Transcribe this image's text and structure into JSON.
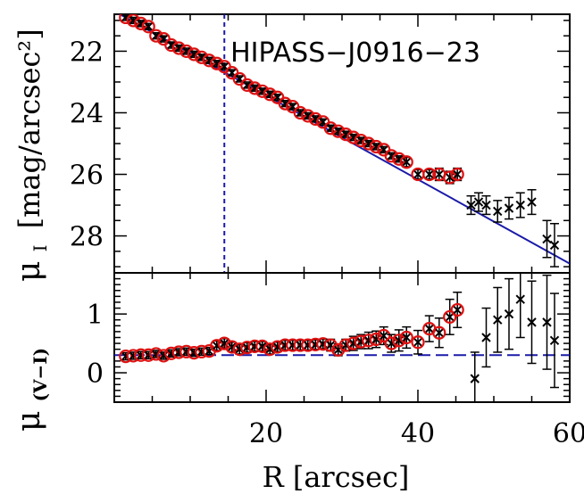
{
  "figure": {
    "title": "HIPASS−J0916−23",
    "xlabel": "R [arcsec]",
    "ylabel_top": "μ",
    "ylabel_top_sub": "I",
    "ylabel_top_units": "[mag/arcsec²]",
    "ylabel_bottom": "μ",
    "ylabel_bottom_sub": "(V−I)"
  },
  "colors": {
    "fit_line": "#1a1aa8",
    "circle_marker": "#dd1111",
    "cross_marker": "#000000",
    "axes": "#000000"
  },
  "chart_data": [
    {
      "type": "scatter",
      "panel": "top",
      "xlim": [
        0,
        60
      ],
      "ylim": [
        29.2,
        20.8
      ],
      "y_inverted": true,
      "xticks": [
        20,
        40,
        60
      ],
      "yticks": [
        22,
        24,
        26,
        28
      ],
      "vline_x": 14.5,
      "fit_line": {
        "x": [
          0,
          60
        ],
        "y": [
          20.7,
          28.9
        ]
      },
      "series": [
        {
          "marker": "cross-circled",
          "points": [
            [
              1.5,
              20.9,
              0.1
            ],
            [
              2.5,
              21.0,
              0.1
            ],
            [
              3.5,
              21.1,
              0.1
            ],
            [
              4.5,
              21.2,
              0.1
            ],
            [
              5.5,
              21.5,
              0.1
            ],
            [
              6.5,
              21.6,
              0.1
            ],
            [
              7.5,
              21.8,
              0.1
            ],
            [
              8.5,
              21.9,
              0.1
            ],
            [
              9.5,
              22.0,
              0.1
            ],
            [
              10.5,
              22.1,
              0.1
            ],
            [
              11.5,
              22.2,
              0.1
            ],
            [
              12.5,
              22.3,
              0.1
            ],
            [
              13.5,
              22.4,
              0.1
            ],
            [
              14.5,
              22.5,
              0.1
            ],
            [
              15.5,
              22.7,
              0.1
            ],
            [
              16.5,
              22.9,
              0.1
            ],
            [
              17.5,
              23.1,
              0.1
            ],
            [
              18.5,
              23.2,
              0.1
            ],
            [
              19.5,
              23.3,
              0.1
            ],
            [
              20.5,
              23.4,
              0.1
            ],
            [
              21.5,
              23.5,
              0.1
            ],
            [
              22.5,
              23.7,
              0.1
            ],
            [
              23.5,
              23.8,
              0.1
            ],
            [
              24.5,
              24.0,
              0.1
            ],
            [
              25.5,
              24.1,
              0.1
            ],
            [
              26.5,
              24.2,
              0.1
            ],
            [
              27.5,
              24.3,
              0.1
            ],
            [
              28.5,
              24.5,
              0.1
            ],
            [
              29.5,
              24.6,
              0.1
            ],
            [
              30.5,
              24.7,
              0.1
            ],
            [
              31.5,
              24.8,
              0.1
            ],
            [
              32.5,
              24.9,
              0.1
            ],
            [
              33.5,
              25.0,
              0.1
            ],
            [
              34.5,
              25.1,
              0.1
            ],
            [
              35.5,
              25.2,
              0.1
            ],
            [
              36.5,
              25.4,
              0.1
            ],
            [
              37.5,
              25.5,
              0.1
            ],
            [
              38.5,
              25.6,
              0.15
            ],
            [
              40.0,
              26.0,
              0.15
            ],
            [
              41.5,
              26.0,
              0.15
            ],
            [
              42.8,
              26.0,
              0.2
            ],
            [
              44.2,
              26.1,
              0.2
            ],
            [
              45.2,
              26.0,
              0.2
            ]
          ]
        },
        {
          "marker": "cross",
          "points": [
            [
              47.0,
              27.0,
              0.3
            ],
            [
              48.0,
              26.9,
              0.3
            ],
            [
              49.0,
              27.0,
              0.3
            ],
            [
              50.5,
              27.2,
              0.35
            ],
            [
              52.0,
              27.1,
              0.35
            ],
            [
              53.5,
              27.0,
              0.4
            ],
            [
              55.0,
              26.9,
              0.4
            ],
            [
              57.0,
              28.1,
              0.6
            ],
            [
              58.0,
              28.3,
              0.7
            ]
          ]
        }
      ]
    },
    {
      "type": "scatter",
      "panel": "bottom",
      "xlim": [
        0,
        60
      ],
      "ylim": [
        -0.5,
        1.7
      ],
      "xticks": [
        20,
        40,
        60
      ],
      "yticks": [
        0,
        1
      ],
      "reference_line_y": 0.3,
      "series": [
        {
          "marker": "cross-circled",
          "points": [
            [
              1.5,
              0.28,
              0.06
            ],
            [
              2.5,
              0.29,
              0.06
            ],
            [
              3.5,
              0.3,
              0.06
            ],
            [
              4.5,
              0.3,
              0.06
            ],
            [
              5.5,
              0.32,
              0.06
            ],
            [
              6.5,
              0.29,
              0.06
            ],
            [
              7.5,
              0.33,
              0.06
            ],
            [
              8.5,
              0.35,
              0.06
            ],
            [
              9.5,
              0.36,
              0.06
            ],
            [
              10.5,
              0.34,
              0.06
            ],
            [
              11.5,
              0.36,
              0.06
            ],
            [
              12.5,
              0.37,
              0.06
            ],
            [
              13.5,
              0.46,
              0.08
            ],
            [
              14.5,
              0.5,
              0.08
            ],
            [
              15.5,
              0.44,
              0.08
            ],
            [
              16.5,
              0.4,
              0.08
            ],
            [
              17.5,
              0.43,
              0.08
            ],
            [
              18.5,
              0.45,
              0.08
            ],
            [
              19.5,
              0.45,
              0.08
            ],
            [
              20.5,
              0.4,
              0.08
            ],
            [
              21.5,
              0.44,
              0.08
            ],
            [
              22.5,
              0.47,
              0.08
            ],
            [
              23.5,
              0.47,
              0.08
            ],
            [
              24.5,
              0.47,
              0.08
            ],
            [
              25.5,
              0.47,
              0.08
            ],
            [
              26.5,
              0.48,
              0.08
            ],
            [
              27.5,
              0.49,
              0.08
            ],
            [
              28.5,
              0.47,
              0.1
            ],
            [
              29.5,
              0.39,
              0.1
            ],
            [
              30.5,
              0.47,
              0.1
            ],
            [
              31.5,
              0.5,
              0.12
            ],
            [
              32.5,
              0.53,
              0.12
            ],
            [
              33.5,
              0.55,
              0.14
            ],
            [
              34.5,
              0.57,
              0.14
            ],
            [
              35.5,
              0.63,
              0.15
            ],
            [
              36.5,
              0.5,
              0.15
            ],
            [
              37.5,
              0.55,
              0.18
            ],
            [
              38.5,
              0.6,
              0.18
            ],
            [
              40.0,
              0.52,
              0.2
            ],
            [
              41.5,
              0.75,
              0.22
            ],
            [
              42.8,
              0.68,
              0.25
            ],
            [
              44.2,
              0.95,
              0.3
            ],
            [
              45.2,
              1.07,
              0.3
            ]
          ]
        },
        {
          "marker": "cross",
          "points": [
            [
              47.5,
              -0.1,
              0.45
            ],
            [
              49.0,
              0.6,
              0.5
            ],
            [
              50.5,
              0.9,
              0.55
            ],
            [
              52.0,
              1.0,
              0.6
            ],
            [
              53.5,
              1.25,
              0.65
            ],
            [
              55.0,
              0.86,
              0.7
            ],
            [
              57.0,
              0.86,
              0.8
            ],
            [
              58.0,
              0.55,
              0.8
            ]
          ]
        }
      ]
    }
  ]
}
